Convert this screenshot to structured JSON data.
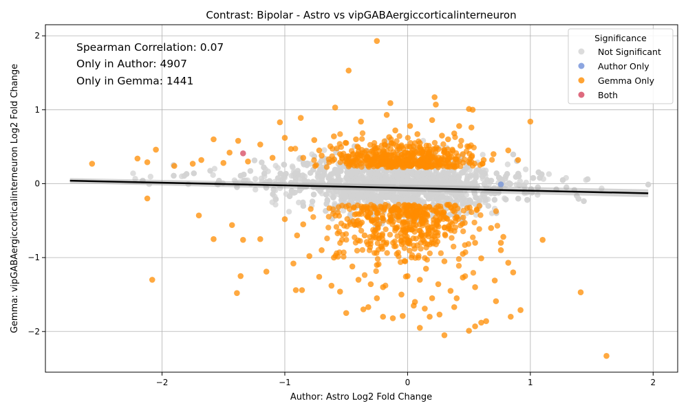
{
  "chart_data": {
    "type": "scatter",
    "title": "Contrast: Bipolar - Astro vs vipGABAergiccorticalinterneuron",
    "xlabel": "Author: Astro Log2 Fold Change",
    "ylabel": "Gemma: vipGABAergiccorticalinterneuron Log2 Fold Change",
    "xlim": [
      -2.95,
      2.2
    ],
    "ylim": [
      -2.55,
      2.15
    ],
    "xticks": [
      -2,
      -1,
      0,
      1,
      2
    ],
    "yticks": [
      -2,
      -1,
      0,
      1,
      2
    ],
    "grid": true,
    "annotations": [
      "Spearman Correlation: 0.07",
      "Only in Author: 4907",
      "Only in Gemma: 1441"
    ],
    "legend": {
      "title": "Significance",
      "placement": "top-right",
      "entries": [
        {
          "label": "Not Significant",
          "color": "#d3d3d3"
        },
        {
          "label": "Author Only",
          "color": "#6f8fd8"
        },
        {
          "label": "Gemma Only",
          "color": "#ff8c00"
        },
        {
          "label": "Both",
          "color": "#d6455e"
        }
      ]
    },
    "regression_line": {
      "x": [
        -2.75,
        1.96
      ],
      "y": [
        0.04,
        -0.13
      ],
      "color": "#000000"
    },
    "series": [
      {
        "name": "Gemma Only",
        "color": "#ff8c00",
        "points": [
          [
            -0.25,
            1.93
          ],
          [
            -0.48,
            1.53
          ],
          [
            -0.59,
            1.03
          ],
          [
            -0.17,
            0.93
          ],
          [
            0.22,
            1.17
          ],
          [
            0.23,
            1.07
          ],
          [
            0.5,
            1.01
          ],
          [
            0.53,
            1.0
          ],
          [
            -0.14,
            1.09
          ],
          [
            1.0,
            0.84
          ],
          [
            -0.87,
            0.89
          ],
          [
            -1.04,
            0.83
          ],
          [
            -0.38,
            0.84
          ],
          [
            0.02,
            0.78
          ],
          [
            0.2,
            0.86
          ],
          [
            0.42,
            0.78
          ],
          [
            0.52,
            0.76
          ],
          [
            -2.05,
            0.46
          ],
          [
            -2.2,
            0.34
          ],
          [
            -2.57,
            0.27
          ],
          [
            -2.12,
            0.29
          ],
          [
            -1.68,
            0.32
          ],
          [
            -1.58,
            0.6
          ],
          [
            -1.38,
            0.58
          ],
          [
            -1.2,
            0.53
          ],
          [
            -1.0,
            0.62
          ],
          [
            -0.76,
            0.59
          ],
          [
            -0.5,
            0.55
          ],
          [
            0.33,
            0.6
          ],
          [
            0.82,
            0.45
          ],
          [
            -2.12,
            -0.2
          ],
          [
            -1.7,
            -0.43
          ],
          [
            -1.58,
            -0.75
          ],
          [
            -1.43,
            -0.56
          ],
          [
            -1.34,
            -0.76
          ],
          [
            -1.2,
            -0.75
          ],
          [
            -0.85,
            -0.55
          ],
          [
            -1.15,
            -1.19
          ],
          [
            -1.36,
            -1.25
          ],
          [
            -1.39,
            -1.48
          ],
          [
            -2.08,
            -1.3
          ],
          [
            -1.0,
            -0.48
          ],
          [
            -0.9,
            -0.7
          ],
          [
            -0.93,
            -1.08
          ],
          [
            -0.91,
            -1.44
          ],
          [
            -0.86,
            -1.44
          ],
          [
            -0.72,
            -1.26
          ],
          [
            -0.62,
            -1.38
          ],
          [
            -0.55,
            -1.46
          ],
          [
            -0.5,
            -1.75
          ],
          [
            -0.36,
            -1.7
          ],
          [
            -0.32,
            -1.67
          ],
          [
            -0.2,
            -1.8
          ],
          [
            -0.12,
            -1.82
          ],
          [
            -0.04,
            -1.79
          ],
          [
            0.06,
            -1.6
          ],
          [
            0.14,
            -1.69
          ],
          [
            0.18,
            -1.8
          ],
          [
            0.26,
            -1.77
          ],
          [
            0.3,
            -2.05
          ],
          [
            0.38,
            -1.67
          ],
          [
            0.5,
            -1.99
          ],
          [
            0.55,
            -1.93
          ],
          [
            0.6,
            -1.88
          ],
          [
            0.64,
            -1.86
          ],
          [
            0.84,
            -1.8
          ],
          [
            0.92,
            -1.71
          ],
          [
            1.1,
            -0.76
          ],
          [
            1.41,
            -1.47
          ],
          [
            1.62,
            -2.33
          ],
          [
            0.72,
            -1.59
          ],
          [
            0.71,
            -1.31
          ],
          [
            0.86,
            -1.2
          ],
          [
            0.82,
            -1.07
          ],
          [
            0.76,
            -0.9
          ],
          [
            0.78,
            -0.72
          ],
          [
            0.6,
            -1.01
          ],
          [
            0.55,
            -1.4
          ],
          [
            0.45,
            -1.27
          ],
          [
            0.35,
            -1.45
          ],
          [
            0.25,
            -1.36
          ],
          [
            0.1,
            -1.3
          ],
          [
            -0.05,
            -1.5
          ],
          [
            -0.2,
            -1.4
          ],
          [
            -0.3,
            -1.36
          ],
          [
            -0.4,
            -1.3
          ],
          [
            -0.6,
            -1.0
          ],
          [
            -0.7,
            -0.9
          ],
          [
            -0.8,
            -0.98
          ],
          [
            -0.45,
            -1.12
          ],
          [
            -0.25,
            -1.1
          ],
          [
            0.0,
            -1.25
          ],
          [
            0.15,
            -1.15
          ],
          [
            0.3,
            -1.05
          ],
          [
            0.45,
            -0.95
          ],
          [
            0.55,
            -0.8
          ],
          [
            -0.1,
            -0.6
          ],
          [
            0.05,
            -0.55
          ],
          [
            0.2,
            -0.7
          ],
          [
            -0.35,
            -0.7
          ],
          [
            0.5,
            0.5
          ],
          [
            0.45,
            0.4
          ],
          [
            0.3,
            0.45
          ],
          [
            0.1,
            0.55
          ],
          [
            -0.05,
            0.5
          ],
          [
            -0.2,
            0.45
          ],
          [
            -0.35,
            0.42
          ],
          [
            -0.55,
            0.4
          ],
          [
            -0.7,
            0.38
          ],
          [
            -0.85,
            0.35
          ],
          [
            -1.1,
            0.35
          ],
          [
            -1.3,
            0.3
          ],
          [
            -1.5,
            0.28
          ],
          [
            -1.75,
            0.27
          ],
          [
            -1.9,
            0.24
          ],
          [
            0.62,
            0.32
          ],
          [
            0.7,
            0.4
          ],
          [
            0.9,
            0.32
          ],
          [
            0.76,
            -0.8
          ],
          [
            0.68,
            -0.6
          ],
          [
            -0.15,
            0.63
          ],
          [
            -0.1,
            0.72
          ],
          [
            0.08,
            0.67
          ],
          [
            0.28,
            0.65
          ],
          [
            0.38,
            0.68
          ],
          [
            -0.42,
            0.6
          ],
          [
            -0.6,
            0.64
          ],
          [
            -0.72,
            0.45
          ],
          [
            -0.95,
            0.47
          ],
          [
            -1.45,
            0.42
          ],
          [
            0.1,
            -1.95
          ],
          [
            -0.25,
            -1.55
          ],
          [
            0.2,
            -1.55
          ],
          [
            0.4,
            -1.55
          ],
          [
            0.05,
            -1.65
          ]
        ]
      },
      {
        "name": "Author Only",
        "color": "#6f8fd8",
        "points": [
          [
            0.76,
            -0.01
          ]
        ]
      },
      {
        "name": "Both",
        "color": "#d6455e",
        "points": [
          [
            -1.34,
            0.41
          ]
        ]
      }
    ]
  }
}
